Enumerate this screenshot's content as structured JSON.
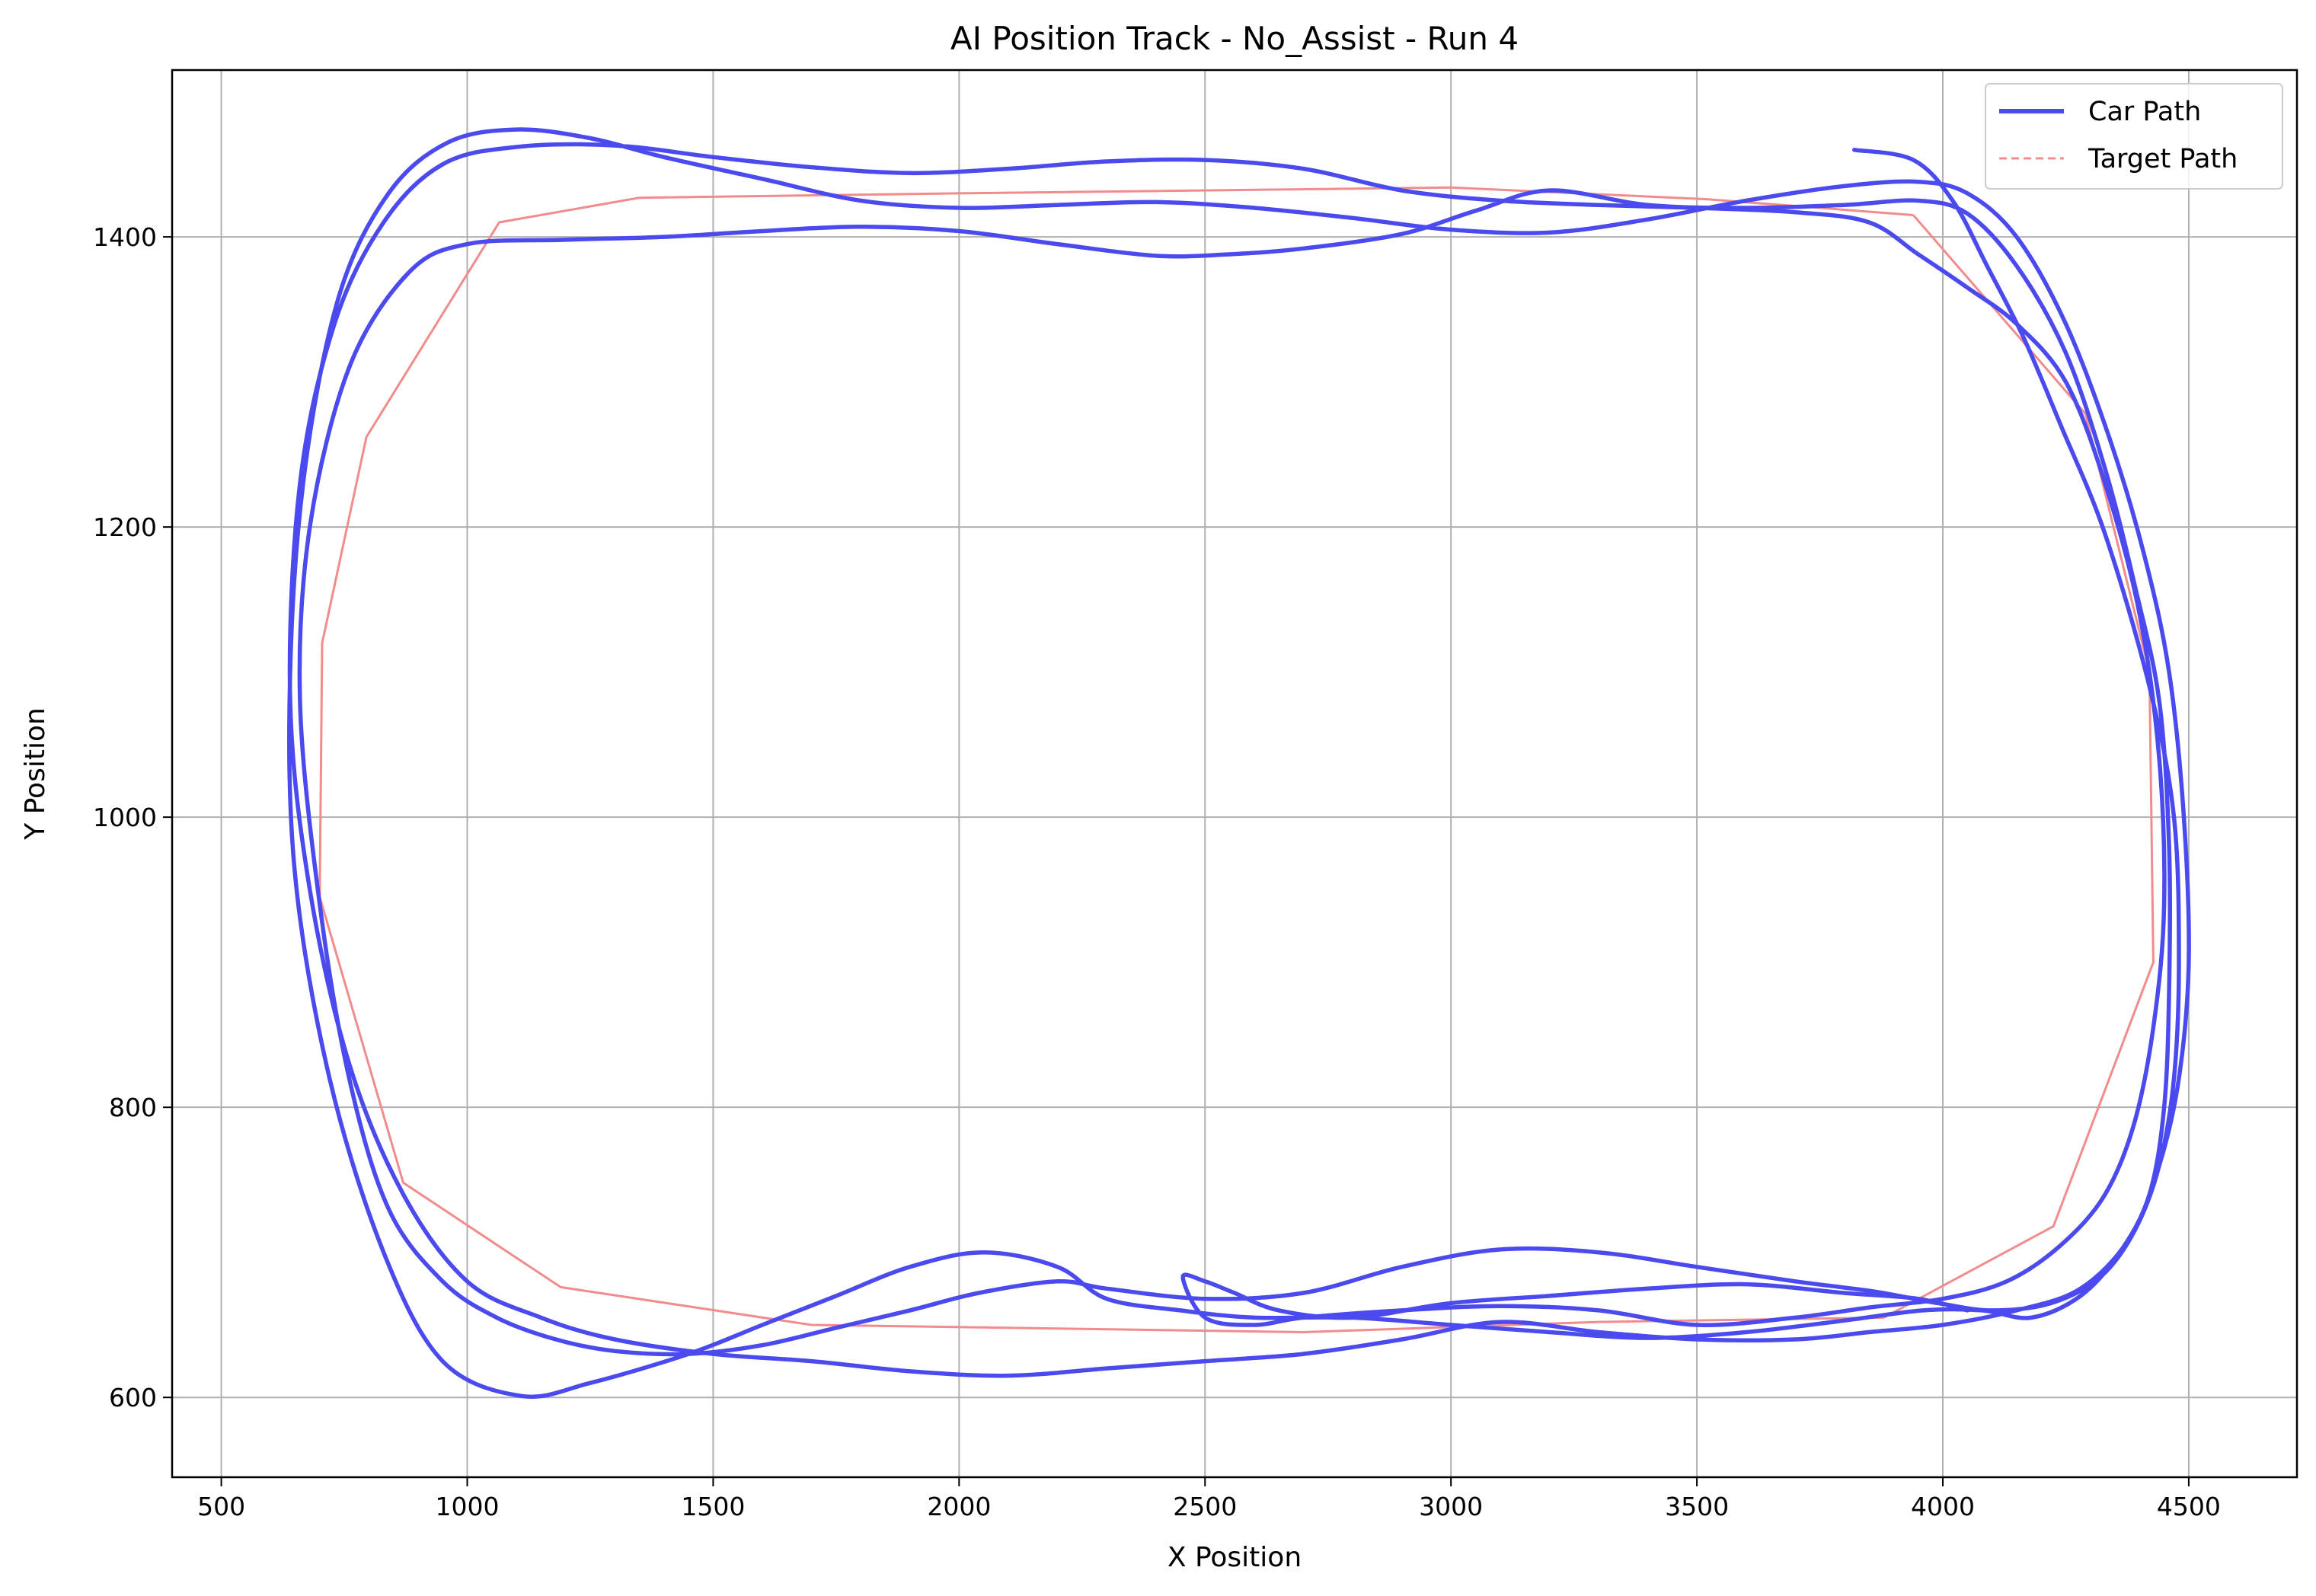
{
  "chart_data": {
    "type": "line",
    "title": "AI Position Track - No_Assist - Run 4",
    "xlabel": "X Position",
    "ylabel": "Y Position",
    "xlim": [
      400,
      4720
    ],
    "ylim": [
      545,
      1515
    ],
    "xticks": [
      500,
      1000,
      1500,
      2000,
      2500,
      3000,
      3500,
      4000,
      4500
    ],
    "yticks": [
      600,
      800,
      1000,
      1200,
      1400
    ],
    "grid": true,
    "legend_position": "top-right",
    "series": [
      {
        "name": "Car Path",
        "color": "#4a4aee",
        "style": "solid",
        "points": [
          [
            3820,
            1460
          ],
          [
            3940,
            1453
          ],
          [
            4020,
            1425
          ],
          [
            4090,
            1380
          ],
          [
            4165,
            1330
          ],
          [
            4240,
            1270
          ],
          [
            4330,
            1195
          ],
          [
            4420,
            1090
          ],
          [
            4470,
            1000
          ],
          [
            4480,
            900
          ],
          [
            4470,
            820
          ],
          [
            4440,
            760
          ],
          [
            4390,
            715
          ],
          [
            4320,
            683
          ],
          [
            4220,
            665
          ],
          [
            4100,
            660
          ],
          [
            3990,
            665
          ],
          [
            3860,
            673
          ],
          [
            3700,
            680
          ],
          [
            3500,
            690
          ],
          [
            3300,
            700
          ],
          [
            3100,
            702
          ],
          [
            2900,
            690
          ],
          [
            2700,
            672
          ],
          [
            2500,
            668
          ],
          [
            2300,
            675
          ],
          [
            2200,
            680
          ],
          [
            2040,
            672
          ],
          [
            1900,
            660
          ],
          [
            1750,
            648
          ],
          [
            1600,
            636
          ],
          [
            1450,
            630
          ],
          [
            1300,
            632
          ],
          [
            1180,
            640
          ],
          [
            1060,
            655
          ],
          [
            950,
            680
          ],
          [
            840,
            730
          ],
          [
            760,
            820
          ],
          [
            700,
            940
          ],
          [
            660,
            1080
          ],
          [
            680,
            1200
          ],
          [
            760,
            1310
          ],
          [
            880,
            1375
          ],
          [
            1000,
            1395
          ],
          [
            1200,
            1398
          ],
          [
            1400,
            1400
          ],
          [
            1600,
            1404
          ],
          [
            1800,
            1407
          ],
          [
            2000,
            1404
          ],
          [
            2200,
            1395
          ],
          [
            2400,
            1387
          ],
          [
            2550,
            1388
          ],
          [
            2700,
            1392
          ],
          [
            2900,
            1402
          ],
          [
            3050,
            1418
          ],
          [
            3200,
            1432
          ],
          [
            3400,
            1422
          ],
          [
            3600,
            1420
          ],
          [
            3800,
            1422
          ],
          [
            3950,
            1425
          ],
          [
            4050,
            1416
          ],
          [
            4150,
            1380
          ],
          [
            4250,
            1320
          ],
          [
            4330,
            1240
          ],
          [
            4390,
            1160
          ],
          [
            4440,
            1080
          ],
          [
            4460,
            980
          ],
          [
            4460,
            880
          ],
          [
            4450,
            800
          ],
          [
            4420,
            740
          ],
          [
            4360,
            700
          ],
          [
            4280,
            670
          ],
          [
            4180,
            655
          ],
          [
            4080,
            660
          ],
          [
            3960,
            660
          ],
          [
            3800,
            653
          ],
          [
            3600,
            645
          ],
          [
            3400,
            641
          ],
          [
            3200,
            645
          ],
          [
            3000,
            650
          ],
          [
            2800,
            655
          ],
          [
            2600,
            655
          ],
          [
            2450,
            660
          ],
          [
            2300,
            668
          ],
          [
            2200,
            690
          ],
          [
            2050,
            700
          ],
          [
            1900,
            690
          ],
          [
            1750,
            670
          ],
          [
            1600,
            650
          ],
          [
            1450,
            630
          ],
          [
            1250,
            610
          ],
          [
            1110,
            601
          ],
          [
            950,
            625
          ],
          [
            830,
            700
          ],
          [
            720,
            820
          ],
          [
            650,
            960
          ],
          [
            640,
            1100
          ],
          [
            670,
            1240
          ],
          [
            740,
            1360
          ],
          [
            840,
            1430
          ],
          [
            960,
            1465
          ],
          [
            1100,
            1474
          ],
          [
            1250,
            1468
          ],
          [
            1400,
            1455
          ],
          [
            1600,
            1440
          ],
          [
            1800,
            1425
          ],
          [
            2000,
            1420
          ],
          [
            2200,
            1422
          ],
          [
            2400,
            1424
          ],
          [
            2600,
            1420
          ],
          [
            2800,
            1413
          ],
          [
            3000,
            1405
          ],
          [
            3200,
            1403
          ],
          [
            3400,
            1412
          ],
          [
            3600,
            1425
          ],
          [
            3800,
            1435
          ],
          [
            3950,
            1438
          ],
          [
            4050,
            1430
          ],
          [
            4150,
            1400
          ],
          [
            4250,
            1340
          ],
          [
            4340,
            1260
          ],
          [
            4410,
            1180
          ],
          [
            4460,
            1100
          ],
          [
            4490,
            1000
          ],
          [
            4500,
            900
          ],
          [
            4480,
            820
          ],
          [
            4440,
            760
          ],
          [
            4380,
            710
          ],
          [
            4280,
            675
          ],
          [
            4150,
            660
          ],
          [
            4000,
            650
          ],
          [
            3850,
            645
          ],
          [
            3700,
            640
          ],
          [
            3500,
            640
          ],
          [
            3300,
            645
          ],
          [
            3100,
            652
          ],
          [
            2900,
            640
          ],
          [
            2700,
            630
          ],
          [
            2500,
            625
          ],
          [
            2300,
            620
          ],
          [
            2100,
            615
          ],
          [
            1900,
            618
          ],
          [
            1700,
            625
          ],
          [
            1500,
            630
          ],
          [
            1300,
            640
          ],
          [
            1150,
            655
          ],
          [
            1000,
            680
          ],
          [
            870,
            740
          ],
          [
            760,
            830
          ],
          [
            680,
            950
          ],
          [
            640,
            1080
          ],
          [
            660,
            1230
          ],
          [
            730,
            1340
          ],
          [
            830,
            1410
          ],
          [
            950,
            1450
          ],
          [
            1100,
            1462
          ],
          [
            1300,
            1463
          ],
          [
            1500,
            1455
          ],
          [
            1700,
            1448
          ],
          [
            1900,
            1444
          ],
          [
            2100,
            1447
          ],
          [
            2300,
            1452
          ],
          [
            2500,
            1453
          ],
          [
            2700,
            1447
          ],
          [
            2900,
            1432
          ],
          [
            3100,
            1425
          ],
          [
            3300,
            1422
          ],
          [
            3500,
            1420
          ],
          [
            3700,
            1417
          ],
          [
            3850,
            1410
          ],
          [
            3950,
            1388
          ],
          [
            4050,
            1365
          ],
          [
            4150,
            1340
          ],
          [
            4250,
            1300
          ],
          [
            4330,
            1230
          ],
          [
            4400,
            1140
          ],
          [
            4440,
            1040
          ],
          [
            4450,
            940
          ],
          [
            4430,
            860
          ],
          [
            4390,
            790
          ],
          [
            4330,
            740
          ],
          [
            4240,
            705
          ],
          [
            4130,
            680
          ],
          [
            4000,
            668
          ],
          [
            3850,
            662
          ],
          [
            3700,
            655
          ],
          [
            3500,
            650
          ],
          [
            3300,
            660
          ],
          [
            3100,
            663
          ],
          [
            2900,
            660
          ],
          [
            2700,
            655
          ],
          [
            2600,
            650
          ],
          [
            2500,
            655
          ],
          [
            2455,
            683
          ],
          [
            2500,
            680
          ],
          [
            2560,
            672
          ],
          [
            2650,
            660
          ],
          [
            2800,
            655
          ],
          [
            3000,
            665
          ],
          [
            3200,
            670
          ],
          [
            3400,
            675
          ],
          [
            3600,
            678
          ],
          [
            3800,
            672
          ],
          [
            3950,
            668
          ],
          [
            4050,
            660
          ]
        ]
      },
      {
        "name": "Target Path",
        "color": "#f28c8c",
        "style": "solid",
        "points": [
          [
            3940,
            1415
          ],
          [
            4290,
            1278
          ],
          [
            4420,
            1100
          ],
          [
            4428,
            900
          ],
          [
            4225,
            718
          ],
          [
            3880,
            655
          ],
          [
            3300,
            652
          ],
          [
            2700,
            645
          ],
          [
            1700,
            650
          ],
          [
            1190,
            676
          ],
          [
            870,
            748
          ],
          [
            700,
            945
          ],
          [
            705,
            1120
          ],
          [
            795,
            1262
          ],
          [
            1065,
            1410
          ],
          [
            1350,
            1427
          ],
          [
            2000,
            1430
          ],
          [
            3000,
            1434
          ],
          [
            3520,
            1426
          ],
          [
            3940,
            1415
          ]
        ]
      }
    ]
  }
}
